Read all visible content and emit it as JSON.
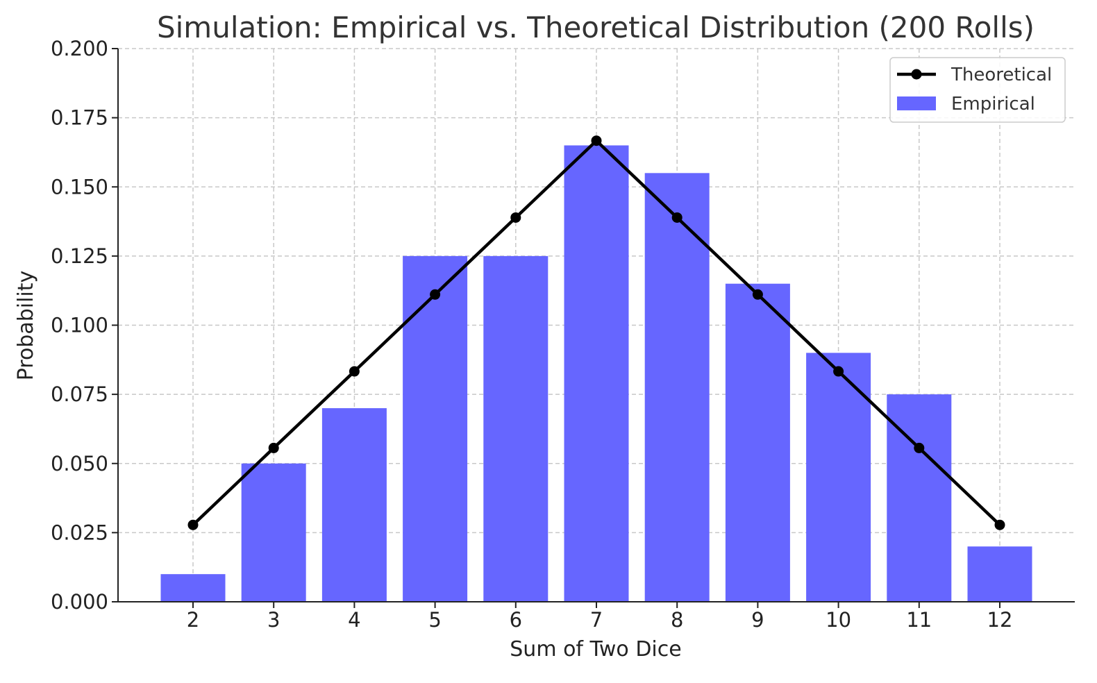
{
  "chart_data": {
    "type": "bar",
    "title": "Simulation: Empirical vs. Theoretical Distribution (200 Rolls)",
    "xlabel": "Sum of Two Dice",
    "ylabel": "Probability",
    "categories": [
      "2",
      "3",
      "4",
      "5",
      "6",
      "7",
      "8",
      "9",
      "10",
      "11",
      "12"
    ],
    "ylim": [
      0,
      0.2
    ],
    "y_ticks": [
      "0.000",
      "0.025",
      "0.050",
      "0.075",
      "0.100",
      "0.125",
      "0.150",
      "0.175",
      "0.200"
    ],
    "grid": true,
    "legend_position": "top-right",
    "series": [
      {
        "name": "Empirical",
        "type": "bar",
        "color": "#6666ff",
        "values": [
          0.01,
          0.05,
          0.07,
          0.125,
          0.125,
          0.165,
          0.155,
          0.115,
          0.09,
          0.075,
          0.02
        ]
      },
      {
        "name": "Theoretical",
        "type": "line",
        "marker": "circle",
        "color": "#000000",
        "values": [
          0.0278,
          0.0556,
          0.0833,
          0.1111,
          0.1389,
          0.1667,
          0.1389,
          0.1111,
          0.0833,
          0.0556,
          0.0278
        ]
      }
    ],
    "legend": [
      {
        "label": "Theoretical",
        "kind": "line"
      },
      {
        "label": "Empirical",
        "kind": "bar"
      }
    ]
  }
}
